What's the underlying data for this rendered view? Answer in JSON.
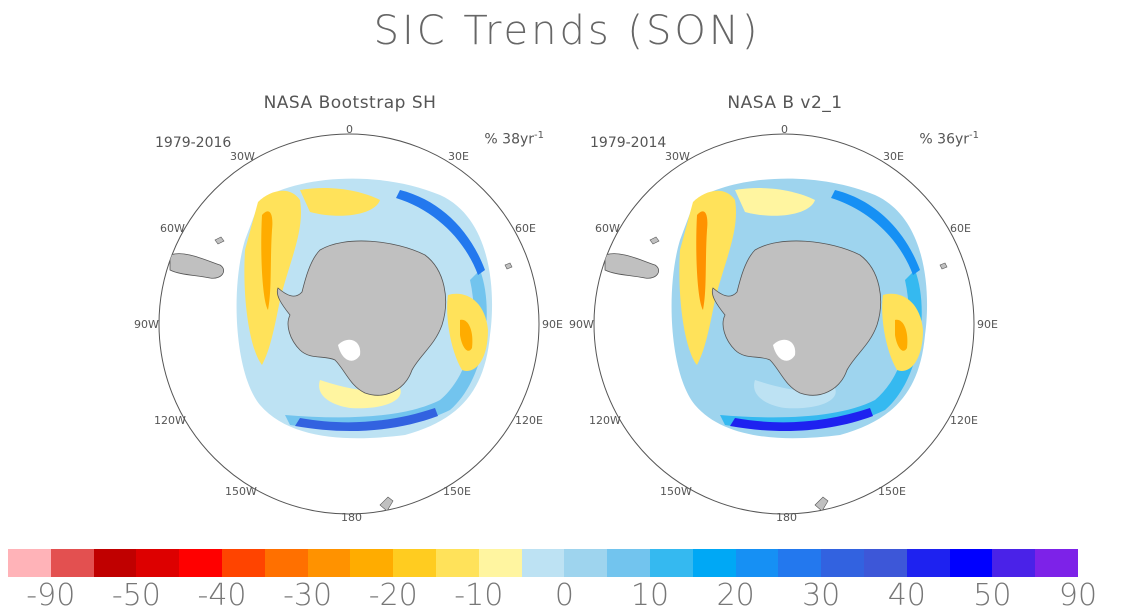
{
  "title": "SIC Trends (SON)",
  "panels": [
    {
      "name": "NASA Bootstrap SH",
      "period": "1979-2016",
      "unit": "% 38yr",
      "unit_exp": "-1"
    },
    {
      "name": "NASA B v2_1",
      "period": "1979-2014",
      "unit": "% 36yr",
      "unit_exp": "-1"
    }
  ],
  "lon_labels": {
    "n0": "0",
    "e30": "30E",
    "e60": "60E",
    "e90": "90E",
    "e120": "120E",
    "e150": "150E",
    "s180": "180",
    "w150": "150W",
    "w120": "120W",
    "w90": "90W",
    "w60": "60W",
    "w30": "30W"
  },
  "colorbar": {
    "colors": [
      "#ffb3b8",
      "#e35050",
      "#c00000",
      "#dd0000",
      "#ff0000",
      "#ff4400",
      "#ff7000",
      "#ff9200",
      "#ffac00",
      "#ffcc20",
      "#ffe25a",
      "#fff5a0",
      "#bde2f3",
      "#9ed4ee",
      "#72c4ee",
      "#35b9f0",
      "#00a8f5",
      "#1690f4",
      "#2378ee",
      "#3262e0",
      "#3d57d8",
      "#1e22f0",
      "#0000ff",
      "#4a22e8",
      "#7d22e8"
    ],
    "labels": [
      "-90",
      "-50",
      "-40",
      "-30",
      "-20",
      "-10",
      "0",
      "10",
      "20",
      "30",
      "40",
      "50",
      "90"
    ]
  },
  "colors": {
    "land": "#c0c0c0",
    "outline": "#555555"
  }
}
